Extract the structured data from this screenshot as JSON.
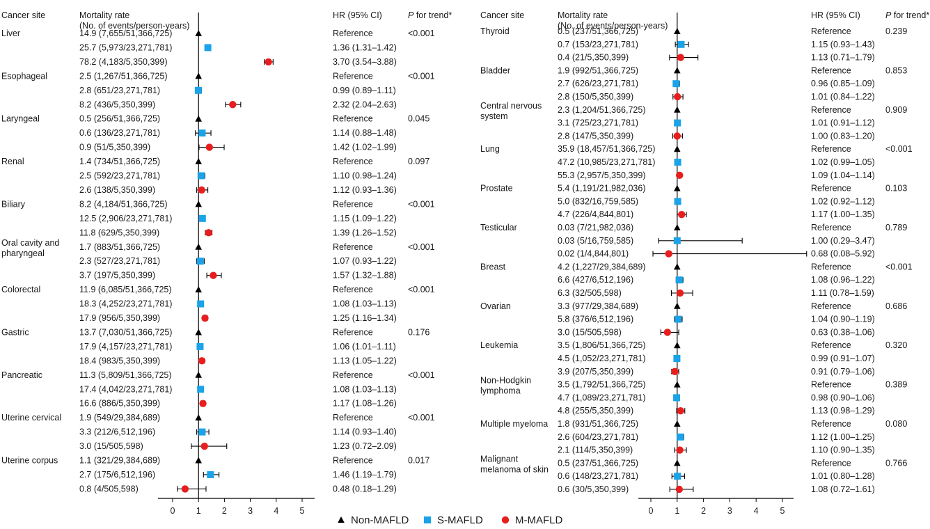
{
  "headers": {
    "site": "Cancer site",
    "rate_line1": "Mortality rate",
    "rate_line2": "(No. of events/person-years)",
    "hr": "HR (95% CI)",
    "trend_p": "P",
    "trend_rest": " for trend*"
  },
  "legend": [
    {
      "label": "Non-MAFLD",
      "shape": "triangle",
      "color": "#000000"
    },
    {
      "label": "S-MAFLD",
      "shape": "square",
      "color": "#1aa3e8"
    },
    {
      "label": "M-MAFLD",
      "shape": "circle",
      "color": "#e81e1e"
    }
  ],
  "chart_data": [
    {
      "type": "forest",
      "x_axis": {
        "ticks": [
          0,
          1,
          2,
          3,
          4,
          5
        ],
        "xlim": [
          -0.6,
          5.4
        ],
        "reference_line": 1
      },
      "sites": [
        {
          "name": "Liver",
          "p_trend": "<0.001",
          "rows": [
            {
              "group": "Non-MAFLD",
              "rate": "14.9 (7,655/51,366,725)",
              "hr_text": "Reference",
              "hr": 1
            },
            {
              "group": "S-MAFLD",
              "rate": "25.7 (5,973/23,271,781)",
              "hr_text": "1.36 (1.31–1.42)",
              "hr": 1.36,
              "lo": 1.31,
              "hi": 1.42
            },
            {
              "group": "M-MAFLD",
              "rate": "78.2 (4,183/5,350,399)",
              "hr_text": "3.70 (3.54–3.88)",
              "hr": 3.7,
              "lo": 3.54,
              "hi": 3.88
            }
          ]
        },
        {
          "name": "Esophageal",
          "p_trend": "<0.001",
          "rows": [
            {
              "group": "Non-MAFLD",
              "rate": "2.5 (1,267/51,366,725)",
              "hr_text": "Reference",
              "hr": 1
            },
            {
              "group": "S-MAFLD",
              "rate": "2.8 (651/23,271,781)",
              "hr_text": "0.99 (0.89–1.11)",
              "hr": 0.99,
              "lo": 0.89,
              "hi": 1.11
            },
            {
              "group": "M-MAFLD",
              "rate": "8.2 (436/5,350,399)",
              "hr_text": "2.32 (2.04–2.63)",
              "hr": 2.32,
              "lo": 2.04,
              "hi": 2.63
            }
          ]
        },
        {
          "name": "Laryngeal",
          "p_trend": "0.045",
          "rows": [
            {
              "group": "Non-MAFLD",
              "rate": "0.5 (256/51,366,725)",
              "hr_text": "Reference",
              "hr": 1
            },
            {
              "group": "S-MAFLD",
              "rate": "0.6 (136/23,271,781)",
              "hr_text": "1.14 (0.88–1.48)",
              "hr": 1.14,
              "lo": 0.88,
              "hi": 1.48
            },
            {
              "group": "M-MAFLD",
              "rate": "0.9 (51/5,350,399)",
              "hr_text": "1.42 (1.02–1.99)",
              "hr": 1.42,
              "lo": 1.02,
              "hi": 1.99
            }
          ]
        },
        {
          "name": "Renal",
          "p_trend": "0.097",
          "rows": [
            {
              "group": "Non-MAFLD",
              "rate": "1.4 (734/51,366,725)",
              "hr_text": "Reference",
              "hr": 1
            },
            {
              "group": "S-MAFLD",
              "rate": "2.5 (592/23,271,781)",
              "hr_text": "1.10 (0.98–1.24)",
              "hr": 1.1,
              "lo": 0.98,
              "hi": 1.24
            },
            {
              "group": "M-MAFLD",
              "rate": "2.6 (138/5,350,399)",
              "hr_text": "1.12 (0.93–1.36)",
              "hr": 1.12,
              "lo": 0.93,
              "hi": 1.36
            }
          ]
        },
        {
          "name": "Biliary",
          "p_trend": "<0.001",
          "rows": [
            {
              "group": "Non-MAFLD",
              "rate": "8.2 (4,184/51,366,725)",
              "hr_text": "Reference",
              "hr": 1
            },
            {
              "group": "S-MAFLD",
              "rate": "12.5 (2,906/23,271,781)",
              "hr_text": "1.15 (1.09–1.22)",
              "hr": 1.15,
              "lo": 1.09,
              "hi": 1.22
            },
            {
              "group": "M-MAFLD",
              "rate": "11.8 (629/5,350,399)",
              "hr_text": "1.39 (1.26–1.52)",
              "hr": 1.39,
              "lo": 1.26,
              "hi": 1.52
            }
          ]
        },
        {
          "name": "Oral cavity and pharyngeal",
          "p_trend": "<0.001",
          "rows": [
            {
              "group": "Non-MAFLD",
              "rate": "1.7 (883/51,366,725)",
              "hr_text": "Reference",
              "hr": 1
            },
            {
              "group": "S-MAFLD",
              "rate": "2.3 (527/23,271,781)",
              "hr_text": "1.07 (0.93–1.22)",
              "hr": 1.07,
              "lo": 0.93,
              "hi": 1.22
            },
            {
              "group": "M-MAFLD",
              "rate": "3.7 (197/5,350,399)",
              "hr_text": "1.57 (1.32–1.88)",
              "hr": 1.57,
              "lo": 1.32,
              "hi": 1.88
            }
          ]
        },
        {
          "name": "Colorectal",
          "p_trend": "<0.001",
          "rows": [
            {
              "group": "Non-MAFLD",
              "rate": "11.9 (6,085/51,366,725)",
              "hr_text": "Reference",
              "hr": 1
            },
            {
              "group": "S-MAFLD",
              "rate": "18.3 (4,252/23,271,781)",
              "hr_text": "1.08 (1.03–1.13)",
              "hr": 1.08,
              "lo": 1.03,
              "hi": 1.13
            },
            {
              "group": "M-MAFLD",
              "rate": "17.9 (956/5,350,399)",
              "hr_text": "1.25 (1.16–1.34)",
              "hr": 1.25,
              "lo": 1.16,
              "hi": 1.34
            }
          ]
        },
        {
          "name": "Gastric",
          "p_trend": "0.176",
          "rows": [
            {
              "group": "Non-MAFLD",
              "rate": "13.7 (7,030/51,366,725)",
              "hr_text": "Reference",
              "hr": 1
            },
            {
              "group": "S-MAFLD",
              "rate": "17.9 (4,157/23,271,781)",
              "hr_text": "1.06 (1.01–1.11)",
              "hr": 1.06,
              "lo": 1.01,
              "hi": 1.11
            },
            {
              "group": "M-MAFLD",
              "rate": "18.4 (983/5,350,399)",
              "hr_text": "1.13 (1.05–1.22)",
              "hr": 1.13,
              "lo": 1.05,
              "hi": 1.22
            }
          ]
        },
        {
          "name": "Pancreatic",
          "p_trend": "<0.001",
          "rows": [
            {
              "group": "Non-MAFLD",
              "rate": "11.3 (5,809/51,366,725)",
              "hr_text": "Reference",
              "hr": 1
            },
            {
              "group": "S-MAFLD",
              "rate": "17.4 (4,042/23,271,781)",
              "hr_text": "1.08 (1.03–1.13)",
              "hr": 1.08,
              "lo": 1.03,
              "hi": 1.13
            },
            {
              "group": "M-MAFLD",
              "rate": "16.6 (886/5,350,399)",
              "hr_text": "1.17 (1.08–1.26)",
              "hr": 1.17,
              "lo": 1.08,
              "hi": 1.26
            }
          ]
        },
        {
          "name": "Uterine cervical",
          "p_trend": "<0.001",
          "rows": [
            {
              "group": "Non-MAFLD",
              "rate": "1.9 (549/29,384,689)",
              "hr_text": "Reference",
              "hr": 1
            },
            {
              "group": "S-MAFLD",
              "rate": "3.3 (212/6,512,196)",
              "hr_text": "1.14 (0.93–1.40)",
              "hr": 1.14,
              "lo": 0.93,
              "hi": 1.4
            },
            {
              "group": "M-MAFLD",
              "rate": "3.0 (15/505,598)",
              "hr_text": "1.23 (0.72–2.09)",
              "hr": 1.23,
              "lo": 0.72,
              "hi": 2.09
            }
          ]
        },
        {
          "name": "Uterine corpus",
          "p_trend": "0.017",
          "rows": [
            {
              "group": "Non-MAFLD",
              "rate": "1.1 (321/29,384,689)",
              "hr_text": "Reference",
              "hr": 1
            },
            {
              "group": "S-MAFLD",
              "rate": "2.7 (175/6,512,196)",
              "hr_text": "1.46 (1.19–1.79)",
              "hr": 1.46,
              "lo": 1.19,
              "hi": 1.79
            },
            {
              "group": "M-MAFLD",
              "rate": "0.8 (4/505,598)",
              "hr_text": "0.48 (0.18–1.29)",
              "hr": 0.48,
              "lo": 0.18,
              "hi": 1.29
            }
          ]
        }
      ]
    },
    {
      "type": "forest",
      "x_axis": {
        "ticks": [
          0,
          1,
          2,
          3,
          4,
          5
        ],
        "xlim": [
          -0.6,
          5.4
        ],
        "reference_line": 1
      },
      "sites": [
        {
          "name": "Thyroid",
          "p_trend": "0.239",
          "rows": [
            {
              "group": "Non-MAFLD",
              "rate": "0.5 (237/51,366,725)",
              "hr_text": "Reference",
              "hr": 1
            },
            {
              "group": "S-MAFLD",
              "rate": "0.7 (153/23,271,781)",
              "hr_text": "1.15 (0.93–1.43)",
              "hr": 1.15,
              "lo": 0.93,
              "hi": 1.43
            },
            {
              "group": "M-MAFLD",
              "rate": "0.4 (21/5,350,399)",
              "hr_text": "1.13 (0.71–1.79)",
              "hr": 1.13,
              "lo": 0.71,
              "hi": 1.79
            }
          ]
        },
        {
          "name": "Bladder",
          "p_trend": "0.853",
          "rows": [
            {
              "group": "Non-MAFLD",
              "rate": "1.9 (992/51,366,725)",
              "hr_text": "Reference",
              "hr": 1
            },
            {
              "group": "S-MAFLD",
              "rate": "2.7 (626/23,271,781)",
              "hr_text": "0.96 (0.85–1.09)",
              "hr": 0.96,
              "lo": 0.85,
              "hi": 1.09
            },
            {
              "group": "M-MAFLD",
              "rate": "2.8 (150/5,350,399)",
              "hr_text": "1.01 (0.84–1.22)",
              "hr": 1.01,
              "lo": 0.84,
              "hi": 1.22
            }
          ]
        },
        {
          "name": "Central nervous system",
          "p_trend": "0.909",
          "rows": [
            {
              "group": "Non-MAFLD",
              "rate": "2.3 (1,204/51,366,725)",
              "hr_text": "Reference",
              "hr": 1
            },
            {
              "group": "S-MAFLD",
              "rate": "3.1 (725/23,271,781)",
              "hr_text": "1.01 (0.91–1.12)",
              "hr": 1.01,
              "lo": 0.91,
              "hi": 1.12
            },
            {
              "group": "M-MAFLD",
              "rate": "2.8 (147/5,350,399)",
              "hr_text": "1.00 (0.83–1.20)",
              "hr": 1.0,
              "lo": 0.83,
              "hi": 1.2
            }
          ]
        },
        {
          "name": "Lung",
          "p_trend": "<0.001",
          "rows": [
            {
              "group": "Non-MAFLD",
              "rate": "35.9 (18,457/51,366,725)",
              "hr_text": "Reference",
              "hr": 1
            },
            {
              "group": "S-MAFLD",
              "rate": "47.2 (10,985/23,271,781)",
              "hr_text": "1.02 (0.99–1.05)",
              "hr": 1.02,
              "lo": 0.99,
              "hi": 1.05
            },
            {
              "group": "M-MAFLD",
              "rate": "55.3 (2,957/5,350,399)",
              "hr_text": "1.09 (1.04–1.14)",
              "hr": 1.09,
              "lo": 1.04,
              "hi": 1.14
            }
          ]
        },
        {
          "name": "Prostate",
          "p_trend": "0.103",
          "rows": [
            {
              "group": "Non-MAFLD",
              "rate": "5.4 (1,191/21,982,036)",
              "hr_text": "Reference",
              "hr": 1
            },
            {
              "group": "S-MAFLD",
              "rate": "5.0 (832/16,759,585)",
              "hr_text": "1.02 (0.92–1.12)",
              "hr": 1.02,
              "lo": 0.92,
              "hi": 1.12
            },
            {
              "group": "M-MAFLD",
              "rate": "4.7 (226/4,844,801)",
              "hr_text": "1.17 (1.00–1.35)",
              "hr": 1.17,
              "lo": 1.0,
              "hi": 1.35
            }
          ]
        },
        {
          "name": "Testicular",
          "p_trend": "0.789",
          "rows": [
            {
              "group": "Non-MAFLD",
              "rate": "0.03 (7/21,982,036)",
              "hr_text": "Reference",
              "hr": 1
            },
            {
              "group": "S-MAFLD",
              "rate": "0.03 (5/16,759,585)",
              "hr_text": "1.00 (0.29–3.47)",
              "hr": 1.0,
              "lo": 0.29,
              "hi": 3.47
            },
            {
              "group": "M-MAFLD",
              "rate": "0.02 (1/4,844,801)",
              "hr_text": "0.68 (0.08–5.92)",
              "hr": 0.68,
              "lo": 0.08,
              "hi": 5.92
            }
          ]
        },
        {
          "name": "Breast",
          "p_trend": "<0.001",
          "rows": [
            {
              "group": "Non-MAFLD",
              "rate": "4.2 (1,227/29,384,689)",
              "hr_text": "Reference",
              "hr": 1
            },
            {
              "group": "S-MAFLD",
              "rate": "6.6 (427/6,512,196)",
              "hr_text": "1.08 (0.96–1.22)",
              "hr": 1.08,
              "lo": 0.96,
              "hi": 1.22
            },
            {
              "group": "M-MAFLD",
              "rate": "6.3 (32/505,598)",
              "hr_text": "1.11 (0.78–1.59)",
              "hr": 1.11,
              "lo": 0.78,
              "hi": 1.59
            }
          ]
        },
        {
          "name": "Ovarian",
          "p_trend": "0.686",
          "rows": [
            {
              "group": "Non-MAFLD",
              "rate": "3.3 (977/29,384,689)",
              "hr_text": "Reference",
              "hr": 1
            },
            {
              "group": "S-MAFLD",
              "rate": "5.8 (376/6,512,196)",
              "hr_text": "1.04 (0.90–1.19)",
              "hr": 1.04,
              "lo": 0.9,
              "hi": 1.19
            },
            {
              "group": "M-MAFLD",
              "rate": "3.0 (15/505,598)",
              "hr_text": "0.63 (0.38–1.06)",
              "hr": 0.63,
              "lo": 0.38,
              "hi": 1.06
            }
          ]
        },
        {
          "name": "Leukemia",
          "p_trend": "0.320",
          "rows": [
            {
              "group": "Non-MAFLD",
              "rate": "3.5 (1,806/51,366,725)",
              "hr_text": "Reference",
              "hr": 1
            },
            {
              "group": "S-MAFLD",
              "rate": "4.5 (1,052/23,271,781)",
              "hr_text": "0.99 (0.91–1.07)",
              "hr": 0.99,
              "lo": 0.91,
              "hi": 1.07
            },
            {
              "group": "M-MAFLD",
              "rate": "3.9 (207/5,350,399)",
              "hr_text": "0.91 (0.79–1.06)",
              "hr": 0.91,
              "lo": 0.79,
              "hi": 1.06
            }
          ]
        },
        {
          "name": "Non-Hodgkin lymphoma",
          "p_trend": "0.389",
          "rows": [
            {
              "group": "Non-MAFLD",
              "rate": "3.5 (1,792/51,366,725)",
              "hr_text": "Reference",
              "hr": 1
            },
            {
              "group": "S-MAFLD",
              "rate": "4.7 (1,089/23,271,781)",
              "hr_text": "0.98 (0.90–1.06)",
              "hr": 0.98,
              "lo": 0.9,
              "hi": 1.06
            },
            {
              "group": "M-MAFLD",
              "rate": "4.8 (255/5,350,399)",
              "hr_text": "1.13 (0.98–1.29)",
              "hr": 1.13,
              "lo": 0.98,
              "hi": 1.29
            }
          ]
        },
        {
          "name": "Multiple myeloma",
          "p_trend": "0.080",
          "rows": [
            {
              "group": "Non-MAFLD",
              "rate": "1.8 (931/51,366,725)",
              "hr_text": "Reference",
              "hr": 1
            },
            {
              "group": "S-MAFLD",
              "rate": "2.6 (604/23,271,781)",
              "hr_text": "1.12 (1.00–1.25)",
              "hr": 1.12,
              "lo": 1.0,
              "hi": 1.25
            },
            {
              "group": "M-MAFLD",
              "rate": "2.1 (114/5,350,399)",
              "hr_text": "1.10 (0.90–1.35)",
              "hr": 1.1,
              "lo": 0.9,
              "hi": 1.35
            }
          ]
        },
        {
          "name": "Malignant melanoma of skin",
          "p_trend": "0.766",
          "rows": [
            {
              "group": "Non-MAFLD",
              "rate": "0.5 (237/51,366,725)",
              "hr_text": "Reference",
              "hr": 1
            },
            {
              "group": "S-MAFLD",
              "rate": "0.6 (148/23,271,781)",
              "hr_text": "1.01 (0.80–1.28)",
              "hr": 1.01,
              "lo": 0.8,
              "hi": 1.28
            },
            {
              "group": "M-MAFLD",
              "rate": "0.6 (30/5,350,399)",
              "hr_text": "1.08 (0.72–1.61)",
              "hr": 1.08,
              "lo": 0.72,
              "hi": 1.61
            }
          ]
        }
      ]
    }
  ]
}
